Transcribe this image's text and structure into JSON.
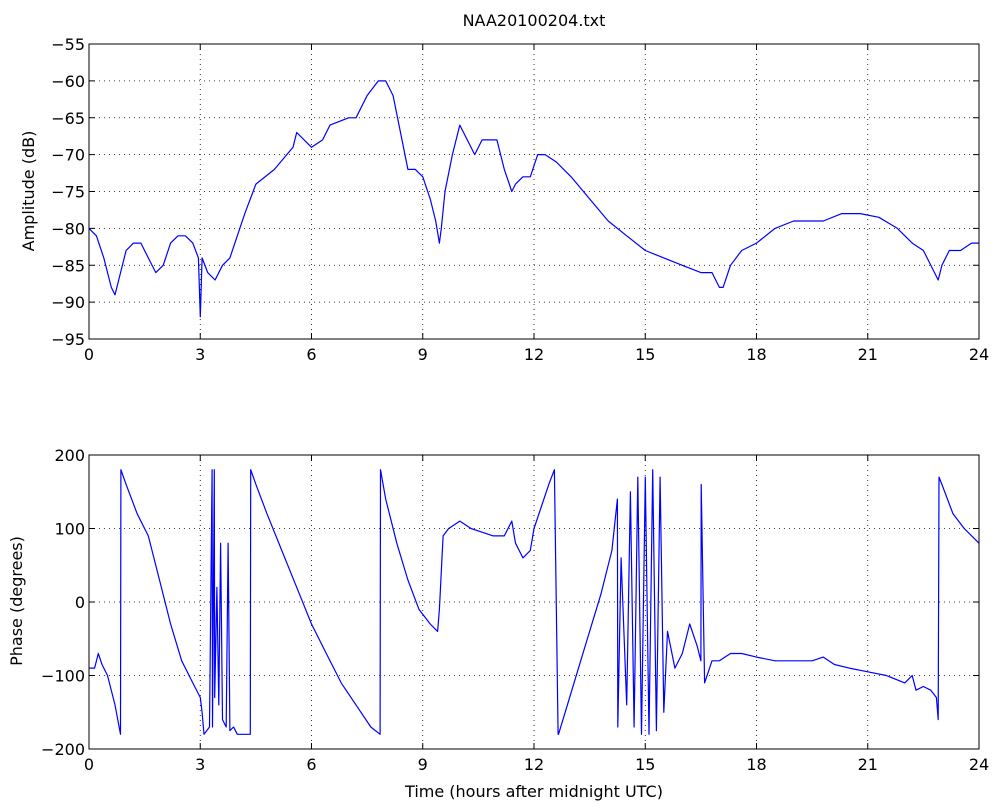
{
  "figure": {
    "title": "NAA20100204.txt",
    "xlabel": "Time (hours after midnight UTC)",
    "line_color": "#0000ff",
    "background": "#ffffff"
  },
  "chart_data": [
    {
      "type": "line",
      "id": "amplitude",
      "title": "NAA20100204.txt",
      "xlabel": "",
      "ylabel": "Amplitude (dB)",
      "xlim": [
        0,
        24
      ],
      "ylim": [
        -95,
        -55
      ],
      "xticks": [
        0,
        3,
        6,
        9,
        12,
        15,
        18,
        21,
        24
      ],
      "yticks": [
        -95,
        -90,
        -85,
        -80,
        -75,
        -70,
        -65,
        -60,
        -55
      ],
      "grid": true,
      "series": [
        {
          "color": "#0000ff",
          "x": [
            0,
            0.2,
            0.4,
            0.6,
            0.7,
            0.8,
            1.0,
            1.2,
            1.4,
            1.6,
            1.8,
            2.0,
            2.2,
            2.4,
            2.6,
            2.8,
            2.95,
            3.0,
            3.05,
            3.2,
            3.4,
            3.6,
            3.8,
            4.0,
            4.2,
            4.5,
            5.0,
            5.5,
            5.6,
            6.0,
            6.3,
            6.5,
            7.0,
            7.2,
            7.5,
            7.8,
            8.0,
            8.2,
            8.4,
            8.6,
            8.8,
            9.0,
            9.2,
            9.35,
            9.45,
            9.5,
            9.6,
            9.8,
            10.0,
            10.2,
            10.4,
            10.6,
            10.8,
            11.0,
            11.2,
            11.4,
            11.5,
            11.7,
            11.9,
            12.1,
            12.3,
            12.6,
            13.0,
            13.5,
            14.0,
            14.5,
            15.0,
            15.5,
            16.0,
            16.5,
            16.8,
            17.0,
            17.1,
            17.3,
            17.6,
            18.0,
            18.5,
            19.0,
            19.5,
            19.8,
            20.3,
            20.8,
            21.3,
            21.8,
            22.2,
            22.5,
            22.8,
            22.9,
            23.0,
            23.2,
            23.5,
            23.8,
            24.0
          ],
          "y": [
            -80,
            -81,
            -84,
            -88,
            -89,
            -87,
            -83,
            -82,
            -82,
            -84,
            -86,
            -85,
            -82,
            -81,
            -81,
            -82,
            -84,
            -92,
            -84,
            -86,
            -87,
            -85,
            -84,
            -81,
            -78,
            -74,
            -72,
            -69,
            -67,
            -69,
            -68,
            -66,
            -65,
            -65,
            -62,
            -60,
            -60,
            -62,
            -67,
            -72,
            -72,
            -73,
            -76,
            -79,
            -82,
            -80,
            -75,
            -70,
            -66,
            -68,
            -70,
            -68,
            -68,
            -68,
            -72,
            -75,
            -74,
            -73,
            -73,
            -70,
            -70,
            -71,
            -73,
            -76,
            -79,
            -81,
            -83,
            -84,
            -85,
            -86,
            -86,
            -88,
            -88,
            -85,
            -83,
            -82,
            -80,
            -79,
            -79,
            -79,
            -78,
            -78,
            -78.5,
            -80,
            -82,
            -83,
            -86,
            -87,
            -85,
            -83,
            -83,
            -82,
            -82
          ]
        }
      ]
    },
    {
      "type": "line",
      "id": "phase",
      "title": "",
      "xlabel": "Time (hours after midnight UTC)",
      "ylabel": "Phase (degrees)",
      "xlim": [
        0,
        24
      ],
      "ylim": [
        -200,
        200
      ],
      "xticks": [
        0,
        3,
        6,
        9,
        12,
        15,
        18,
        21,
        24
      ],
      "yticks": [
        -200,
        -100,
        0,
        100,
        200
      ],
      "grid": true,
      "series": [
        {
          "color": "#0000ff",
          "x": [
            0,
            0.15,
            0.25,
            0.35,
            0.5,
            0.7,
            0.85,
            0.86,
            1.0,
            1.3,
            1.6,
            1.9,
            2.2,
            2.5,
            2.8,
            3.0,
            3.05,
            3.1,
            3.25,
            3.32,
            3.33,
            3.38,
            3.39,
            3.45,
            3.5,
            3.55,
            3.6,
            3.7,
            3.75,
            3.8,
            3.9,
            4.0,
            4.2,
            4.35,
            4.36,
            4.5,
            4.8,
            5.2,
            5.6,
            6.0,
            6.4,
            6.8,
            7.2,
            7.6,
            7.85,
            7.86,
            8.0,
            8.3,
            8.6,
            8.9,
            9.2,
            9.4,
            9.45,
            9.55,
            9.7,
            10.0,
            10.3,
            10.6,
            10.9,
            11.2,
            11.4,
            11.5,
            11.6,
            11.7,
            11.9,
            12.0,
            12.2,
            12.4,
            12.55,
            12.65,
            12.66,
            12.9,
            13.2,
            13.5,
            13.8,
            14.1,
            14.25,
            14.26,
            14.35,
            14.5,
            14.6,
            14.7,
            14.8,
            14.9,
            15.0,
            15.1,
            15.2,
            15.3,
            15.4,
            15.5,
            15.6,
            15.8,
            16.0,
            16.2,
            16.4,
            16.5,
            16.51,
            16.6,
            16.8,
            17.0,
            17.3,
            17.6,
            18.0,
            18.5,
            19.0,
            19.5,
            19.8,
            20.1,
            20.5,
            21.0,
            21.5,
            22.0,
            22.2,
            22.3,
            22.5,
            22.7,
            22.85,
            22.9,
            22.92,
            23.0,
            23.3,
            23.6,
            24.0
          ],
          "y": [
            -90,
            -90,
            -70,
            -85,
            -100,
            -140,
            -180,
            180,
            160,
            120,
            90,
            30,
            -30,
            -80,
            -110,
            -130,
            -150,
            -180,
            -170,
            180,
            -170,
            180,
            -130,
            20,
            -140,
            80,
            -160,
            -170,
            80,
            -175,
            -170,
            -180,
            -180,
            -180,
            180,
            160,
            120,
            70,
            20,
            -30,
            -70,
            -110,
            -140,
            -170,
            -180,
            180,
            140,
            80,
            30,
            -10,
            -30,
            -40,
            -10,
            90,
            100,
            110,
            100,
            95,
            90,
            90,
            110,
            80,
            70,
            60,
            70,
            100,
            130,
            160,
            180,
            -180,
            -180,
            -140,
            -90,
            -40,
            10,
            70,
            140,
            -170,
            60,
            -140,
            150,
            -170,
            170,
            -180,
            170,
            -180,
            180,
            -175,
            170,
            -150,
            -40,
            -90,
            -70,
            -30,
            -60,
            -80,
            160,
            -110,
            -80,
            -80,
            -70,
            -70,
            -75,
            -80,
            -80,
            -80,
            -75,
            -85,
            -90,
            -95,
            -100,
            -110,
            -100,
            -120,
            -115,
            -120,
            -130,
            -160,
            170,
            160,
            120,
            100,
            80
          ]
        }
      ]
    }
  ]
}
